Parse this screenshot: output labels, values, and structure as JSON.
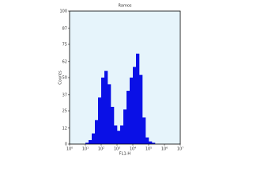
{
  "chart_data": {
    "type": "histogram",
    "title": "Ramos",
    "x_label": "FL1-H",
    "y_label": "Counts",
    "bins": [
      1,
      1.585,
      2.512,
      3.981,
      6.31,
      10,
      15.85,
      25.12,
      39.81,
      63.1,
      100,
      158.5,
      251.2,
      398.1,
      631,
      1000,
      1585,
      2512,
      3981,
      6310,
      10000,
      15850,
      25120,
      39810,
      63100,
      100000,
      158500,
      251200,
      398100,
      631000,
      1000000,
      1585000,
      2512000,
      3981000,
      6310000,
      10000000
    ],
    "values": [
      0,
      0,
      0,
      0,
      0,
      1,
      3,
      8,
      18,
      35,
      50,
      55,
      45,
      28,
      14,
      10,
      14,
      26,
      40,
      50,
      58,
      68,
      52,
      20,
      5,
      2,
      1,
      0,
      0,
      0,
      0,
      0,
      0,
      0,
      0
    ],
    "color": "#0a10e6",
    "background": "#e6f4fb",
    "x_log": true,
    "xlim": [
      1,
      10000000
    ],
    "xticks": [
      {
        "value": 1,
        "label": "10⁰"
      },
      {
        "value": 10,
        "label": "10¹"
      },
      {
        "value": 100,
        "label": "10²"
      },
      {
        "value": 1000,
        "label": "10³"
      },
      {
        "value": 10000,
        "label": "10⁴"
      },
      {
        "value": 100000,
        "label": "10⁵"
      },
      {
        "value": 1000000,
        "label": "10⁶"
      },
      {
        "value": 10000000,
        "label": "10⁷"
      }
    ],
    "ylim": [
      0,
      100
    ],
    "yticks": [
      0,
      12,
      25,
      37,
      50,
      62,
      75,
      87,
      100
    ]
  }
}
